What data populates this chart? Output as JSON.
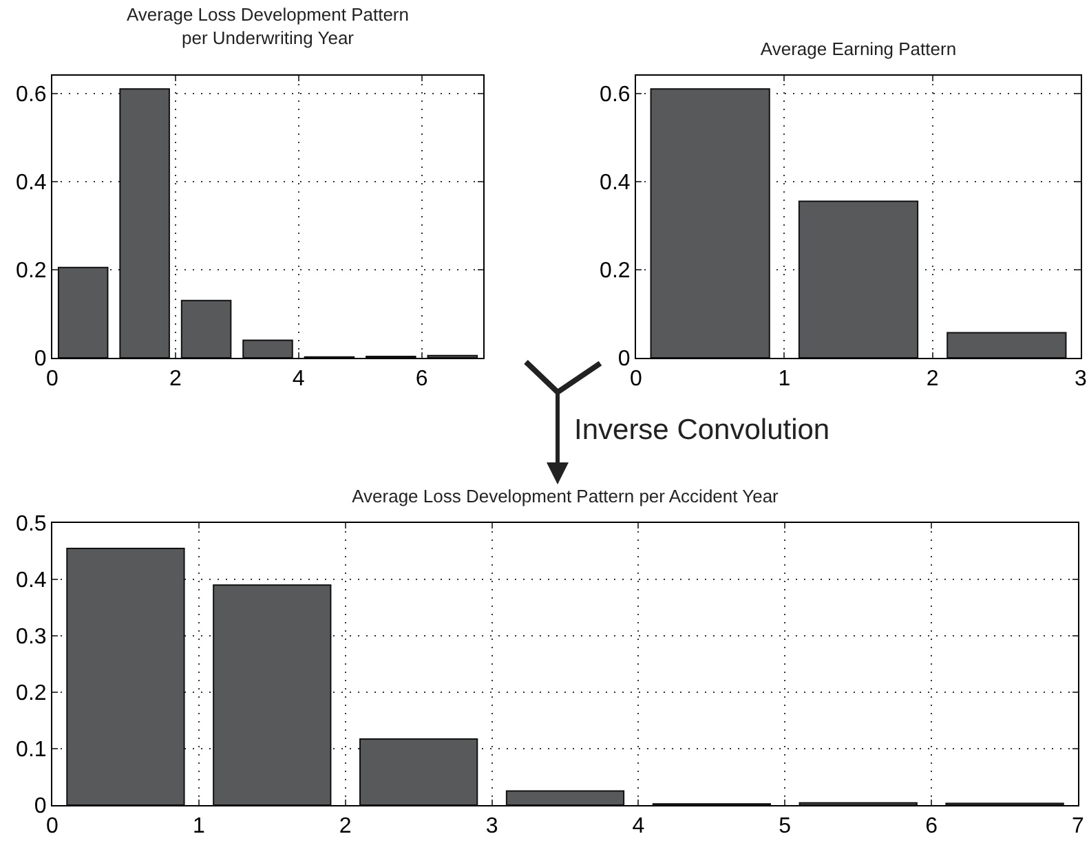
{
  "chart_data": [
    {
      "type": "bar",
      "title": "Average Loss Development Pattern\nper Underwriting Year",
      "x": [
        0.5,
        1.5,
        2.5,
        3.5,
        4.5,
        5.5,
        6.5
      ],
      "values": [
        0.205,
        0.61,
        0.13,
        0.04,
        0.002,
        0.003,
        0.005
      ],
      "color": "#58595b",
      "xlim": [
        0,
        7
      ],
      "xticks": [
        0,
        2,
        4,
        6
      ],
      "ylim": [
        0,
        0.64
      ],
      "yticks": [
        0,
        0.2,
        0.4,
        0.6
      ],
      "grid": true
    },
    {
      "type": "bar",
      "title": "Average Earning Pattern",
      "x": [
        0.5,
        1.5,
        2.5
      ],
      "values": [
        0.61,
        0.355,
        0.057
      ],
      "color": "#58595b",
      "xlim": [
        0,
        3
      ],
      "xticks": [
        0,
        1,
        2,
        3
      ],
      "ylim": [
        0,
        0.64
      ],
      "yticks": [
        0,
        0.2,
        0.4,
        0.6
      ],
      "grid": true
    },
    {
      "type": "bar",
      "title": "Average Loss Development Pattern per Accident Year",
      "x": [
        0.5,
        1.5,
        2.5,
        3.5,
        4.5,
        5.5,
        6.5
      ],
      "values": [
        0.455,
        0.39,
        0.117,
        0.025,
        0.002,
        0.004,
        0.003
      ],
      "color": "#58595b",
      "xlim": [
        0,
        7
      ],
      "xticks": [
        0,
        1,
        2,
        3,
        4,
        5,
        6,
        7
      ],
      "ylim": [
        0,
        0.5
      ],
      "yticks": [
        0,
        0.1,
        0.2,
        0.3,
        0.4,
        0.5
      ],
      "grid": true,
      "annotations": [
        "Inverse Convolution"
      ]
    }
  ]
}
